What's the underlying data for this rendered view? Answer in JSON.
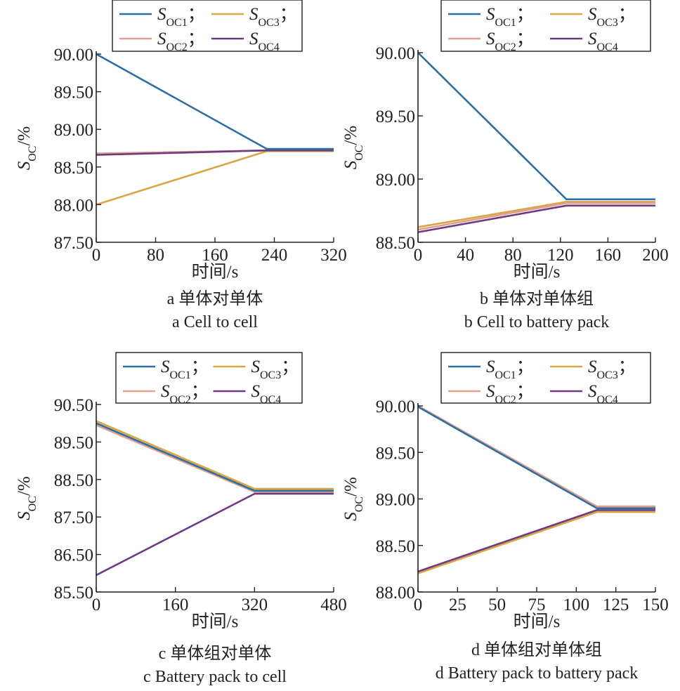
{
  "colors": {
    "S1": "#2e6fa3",
    "S2": "#e2a08c",
    "S3": "#d9a646",
    "S4": "#6e3a82"
  },
  "legend": {
    "S1": {
      "main": "S",
      "sub": "OC1",
      "suffix": "；"
    },
    "S2": {
      "main": "S",
      "sub": "OC2",
      "suffix": "；"
    },
    "S3": {
      "main": "S",
      "sub": "OC3",
      "suffix": "；"
    },
    "S4": {
      "main": "S",
      "sub": "OC4",
      "suffix": ""
    }
  },
  "ylabel": {
    "main": "S",
    "sub": "OC",
    "unit": "/%"
  },
  "xlabel": "时间/s",
  "chart_data": [
    {
      "type": "line",
      "caption_cn": "a  单体对单体",
      "caption_en": "a  Cell to cell",
      "xlim": [
        0,
        320
      ],
      "ylim": [
        87.5,
        90.0
      ],
      "xticks": [
        "0",
        "80",
        "160",
        "240",
        "320"
      ],
      "yticks": [
        "87.50",
        "88.00",
        "88.50",
        "89.00",
        "89.50",
        "90.00"
      ],
      "series": [
        {
          "name": "SOC1",
          "key": "S1",
          "x": [
            0,
            230,
            320
          ],
          "y": [
            90.0,
            88.74,
            88.74
          ]
        },
        {
          "name": "SOC2",
          "key": "S2",
          "x": [
            0,
            230,
            320
          ],
          "y": [
            88.68,
            88.72,
            88.72
          ]
        },
        {
          "name": "SOC3",
          "key": "S3",
          "x": [
            0,
            230,
            320
          ],
          "y": [
            88.0,
            88.71,
            88.71
          ]
        },
        {
          "name": "SOC4",
          "key": "S4",
          "x": [
            0,
            230,
            320
          ],
          "y": [
            88.66,
            88.72,
            88.72
          ]
        }
      ]
    },
    {
      "type": "line",
      "caption_cn": "b  单体对单体组",
      "caption_en": "b  Cell to battery pack",
      "xlim": [
        0,
        200
      ],
      "ylim": [
        88.5,
        90.0
      ],
      "xticks": [
        "0",
        "40",
        "80",
        "120",
        "160",
        "200"
      ],
      "yticks": [
        "88.50",
        "89.00",
        "89.50",
        "90.00"
      ],
      "series": [
        {
          "name": "SOC1",
          "key": "S1",
          "x": [
            0,
            125,
            200
          ],
          "y": [
            90.0,
            88.84,
            88.84
          ]
        },
        {
          "name": "SOC2",
          "key": "S2",
          "x": [
            0,
            125,
            200
          ],
          "y": [
            88.6,
            88.81,
            88.81
          ]
        },
        {
          "name": "SOC3",
          "key": "S3",
          "x": [
            0,
            125,
            200
          ],
          "y": [
            88.62,
            88.82,
            88.82
          ]
        },
        {
          "name": "SOC4",
          "key": "S4",
          "x": [
            0,
            125,
            200
          ],
          "y": [
            88.58,
            88.79,
            88.79
          ]
        }
      ]
    },
    {
      "type": "line",
      "caption_cn": "c  单体组对单体",
      "caption_en": "c  Battery pack to cell",
      "xlim": [
        0,
        480
      ],
      "ylim": [
        85.5,
        90.5
      ],
      "xticks": [
        "0",
        "160",
        "320",
        "480"
      ],
      "yticks": [
        "85.50",
        "86.50",
        "87.50",
        "88.50",
        "89.50",
        "90.50"
      ],
      "series": [
        {
          "name": "SOC1",
          "key": "S1",
          "x": [
            0,
            320,
            480
          ],
          "y": [
            90.0,
            88.2,
            88.2
          ]
        },
        {
          "name": "SOC2",
          "key": "S2",
          "x": [
            0,
            320,
            480
          ],
          "y": [
            89.95,
            88.17,
            88.17
          ]
        },
        {
          "name": "SOC3",
          "key": "S3",
          "x": [
            0,
            320,
            480
          ],
          "y": [
            90.06,
            88.25,
            88.25
          ]
        },
        {
          "name": "SOC4",
          "key": "S4",
          "x": [
            0,
            320,
            480
          ],
          "y": [
            85.95,
            88.12,
            88.12
          ]
        }
      ]
    },
    {
      "type": "line",
      "caption_cn": "d  单体组对单体组",
      "caption_en": "d  Battery pack to battery pack",
      "xlim": [
        0,
        150
      ],
      "ylim": [
        88.0,
        90.0
      ],
      "xticks": [
        "0",
        "25",
        "50",
        "75",
        "100",
        "125",
        "150"
      ],
      "yticks": [
        "88.00",
        "88.50",
        "89.00",
        "89.50",
        "90.00"
      ],
      "series": [
        {
          "name": "SOC1",
          "key": "S1",
          "x": [
            0,
            113,
            150
          ],
          "y": [
            89.99,
            88.9,
            88.9
          ]
        },
        {
          "name": "SOC2",
          "key": "S2",
          "x": [
            0,
            113,
            150
          ],
          "y": [
            90.0,
            88.92,
            88.92
          ]
        },
        {
          "name": "SOC3",
          "key": "S3",
          "x": [
            0,
            113,
            150
          ],
          "y": [
            88.2,
            88.86,
            88.86
          ]
        },
        {
          "name": "SOC4",
          "key": "S4",
          "x": [
            0,
            113,
            150
          ],
          "y": [
            88.22,
            88.88,
            88.88
          ]
        }
      ]
    }
  ]
}
